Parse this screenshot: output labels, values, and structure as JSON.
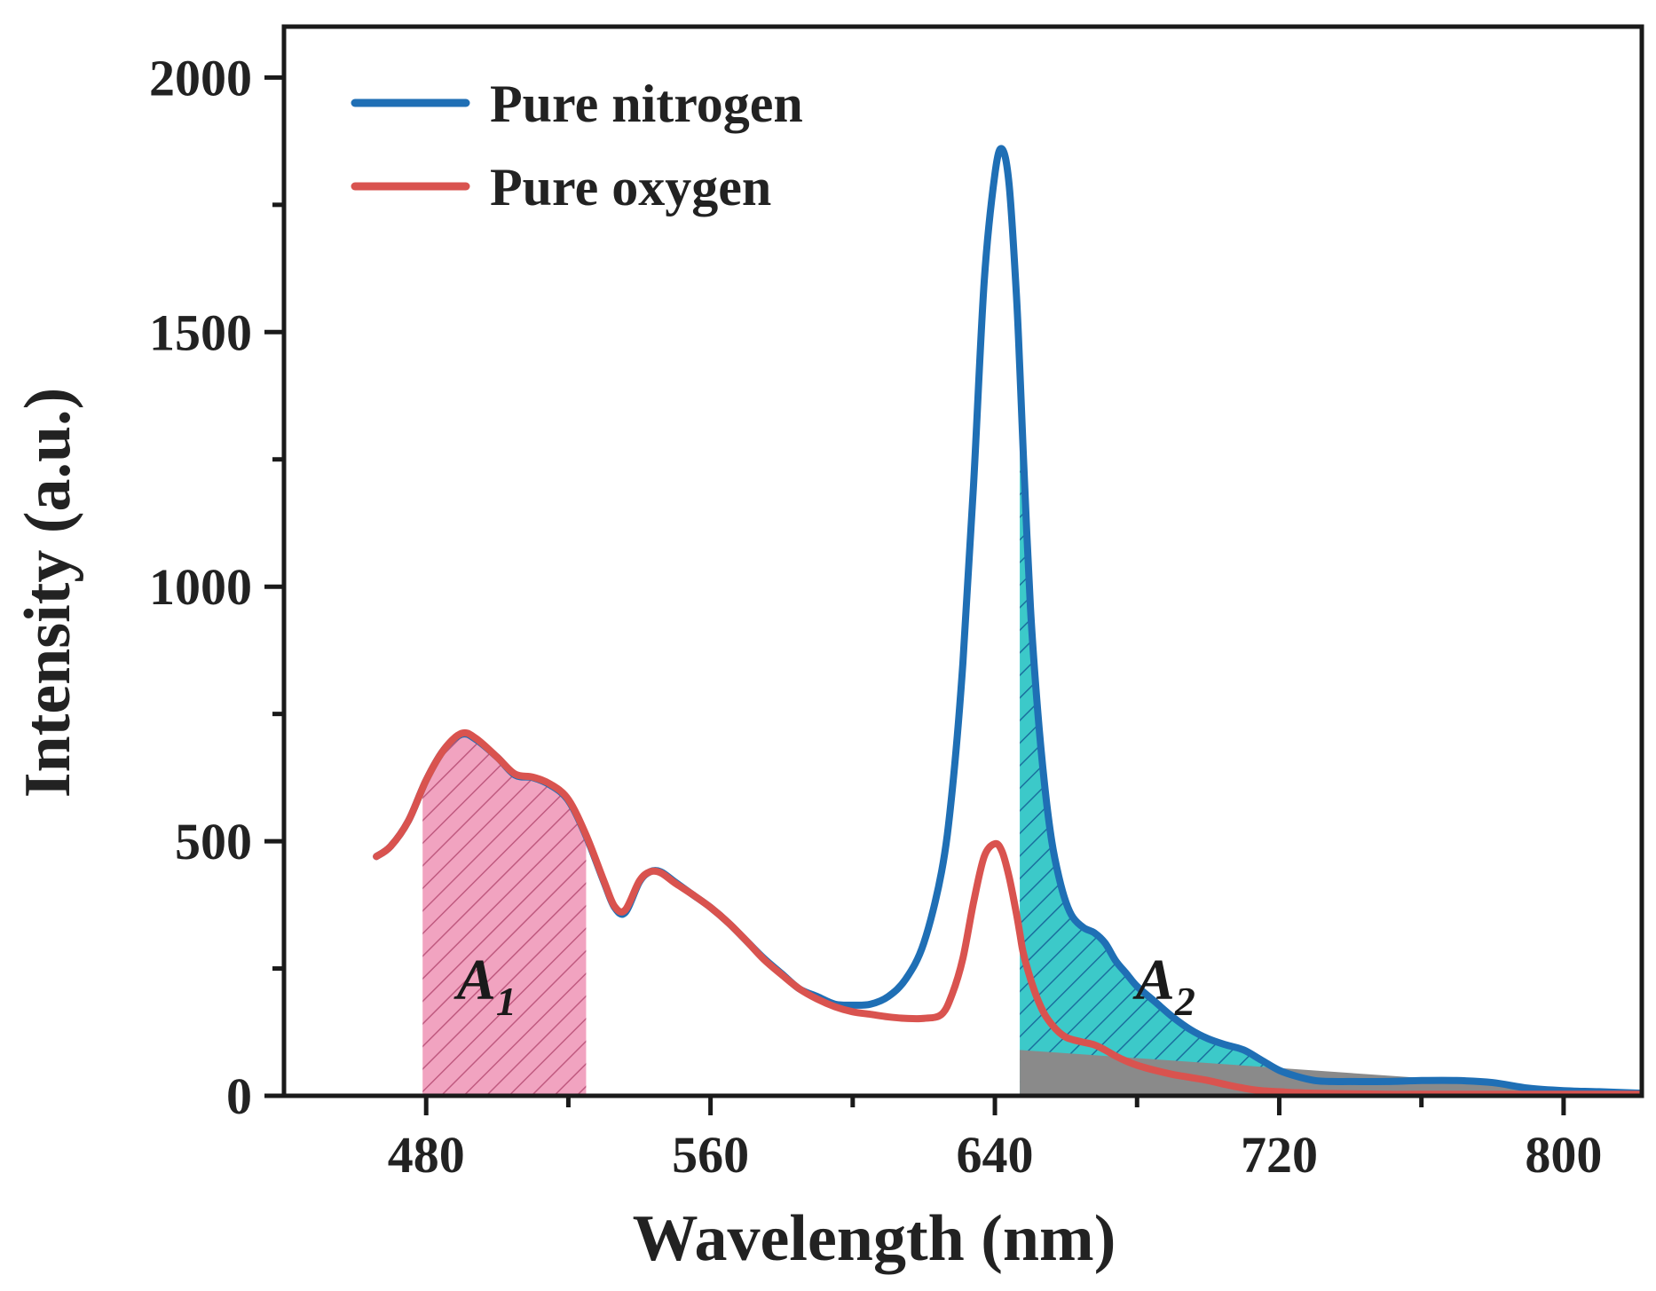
{
  "chart_data": {
    "type": "line",
    "title": "",
    "xlabel": "Wavelength (nm)",
    "ylabel": "Intensity (a.u.)",
    "xlim": [
      440,
      822
    ],
    "ylim": [
      0,
      2100
    ],
    "xticks": [
      480,
      560,
      640,
      720,
      800
    ],
    "yticks": [
      0,
      500,
      1000,
      1500,
      2000
    ],
    "series": [
      {
        "name": "Pure nitrogen",
        "color": "#1f6fb5",
        "x": [
          466,
          470,
          475,
          480,
          485,
          490,
          494,
          500,
          505,
          510,
          515,
          520,
          525,
          530,
          533,
          536,
          540,
          543,
          546,
          550,
          555,
          560,
          565,
          570,
          575,
          580,
          585,
          590,
          595,
          600,
          605,
          610,
          615,
          620,
          625,
          628,
          631,
          634,
          637,
          640,
          642,
          644,
          646,
          647,
          648,
          650,
          652,
          654,
          656,
          658,
          660,
          662,
          665,
          668,
          671,
          674,
          677,
          680,
          685,
          690,
          695,
          700,
          705,
          710,
          715,
          720,
          725,
          730,
          735,
          740,
          750,
          760,
          770,
          780,
          790,
          800,
          810,
          822
        ],
        "y": [
          470,
          490,
          540,
          620,
          680,
          710,
          700,
          665,
          630,
          625,
          610,
          580,
          510,
          420,
          370,
          360,
          420,
          440,
          440,
          420,
          395,
          370,
          340,
          305,
          270,
          240,
          210,
          195,
          180,
          178,
          180,
          195,
          230,
          300,
          440,
          600,
          850,
          1200,
          1600,
          1810,
          1860,
          1790,
          1580,
          1430,
          1260,
          960,
          760,
          610,
          500,
          430,
          380,
          350,
          330,
          320,
          300,
          265,
          240,
          215,
          185,
          155,
          130,
          112,
          100,
          90,
          70,
          50,
          38,
          30,
          28,
          28,
          28,
          30,
          30,
          26,
          15,
          10,
          8,
          5
        ]
      },
      {
        "name": "Pure oxygen",
        "color": "#d9534f",
        "x": [
          466,
          470,
          475,
          480,
          485,
          490,
          494,
          500,
          505,
          510,
          515,
          520,
          525,
          530,
          533,
          536,
          540,
          543,
          546,
          550,
          555,
          560,
          565,
          570,
          575,
          580,
          585,
          590,
          595,
          600,
          605,
          610,
          615,
          620,
          625,
          628,
          631,
          634,
          637,
          640,
          642,
          644,
          646,
          647,
          648,
          650,
          652,
          654,
          656,
          658,
          660,
          662,
          665,
          668,
          671,
          674,
          677,
          680,
          685,
          690,
          695,
          700,
          705,
          710,
          715,
          720,
          725,
          730,
          740,
          750,
          760,
          780,
          800,
          822
        ],
        "y": [
          470,
          490,
          540,
          620,
          680,
          712,
          702,
          665,
          632,
          626,
          612,
          582,
          512,
          422,
          372,
          365,
          422,
          440,
          438,
          418,
          395,
          370,
          340,
          305,
          268,
          238,
          210,
          190,
          175,
          165,
          160,
          155,
          152,
          152,
          160,
          200,
          270,
          380,
          470,
          495,
          480,
          430,
          360,
          320,
          280,
          230,
          190,
          160,
          140,
          125,
          115,
          110,
          105,
          100,
          90,
          78,
          68,
          60,
          50,
          42,
          36,
          30,
          22,
          15,
          10,
          8,
          6,
          5,
          4,
          3,
          3,
          3,
          3,
          3
        ]
      }
    ],
    "regions": [
      {
        "name": "A1",
        "x_start": 479,
        "x_end": 525,
        "color": "#ef9ab8",
        "hatch": "diagonal"
      },
      {
        "name": "A2",
        "x_start": 647,
        "x_end": 822,
        "color": "#38c8c8",
        "hatch": "diagonal"
      },
      {
        "name": "baseline",
        "x_start": 647,
        "x_end": 822,
        "color": "#8a8a8a"
      }
    ],
    "annotations": [
      {
        "text": "A",
        "subscript": "1",
        "x": 497,
        "y": 190
      },
      {
        "text": "A",
        "subscript": "2",
        "x": 688,
        "y": 190
      }
    ],
    "legend": {
      "position": "top-left",
      "entries": [
        "Pure nitrogen",
        "Pure oxygen"
      ]
    }
  }
}
